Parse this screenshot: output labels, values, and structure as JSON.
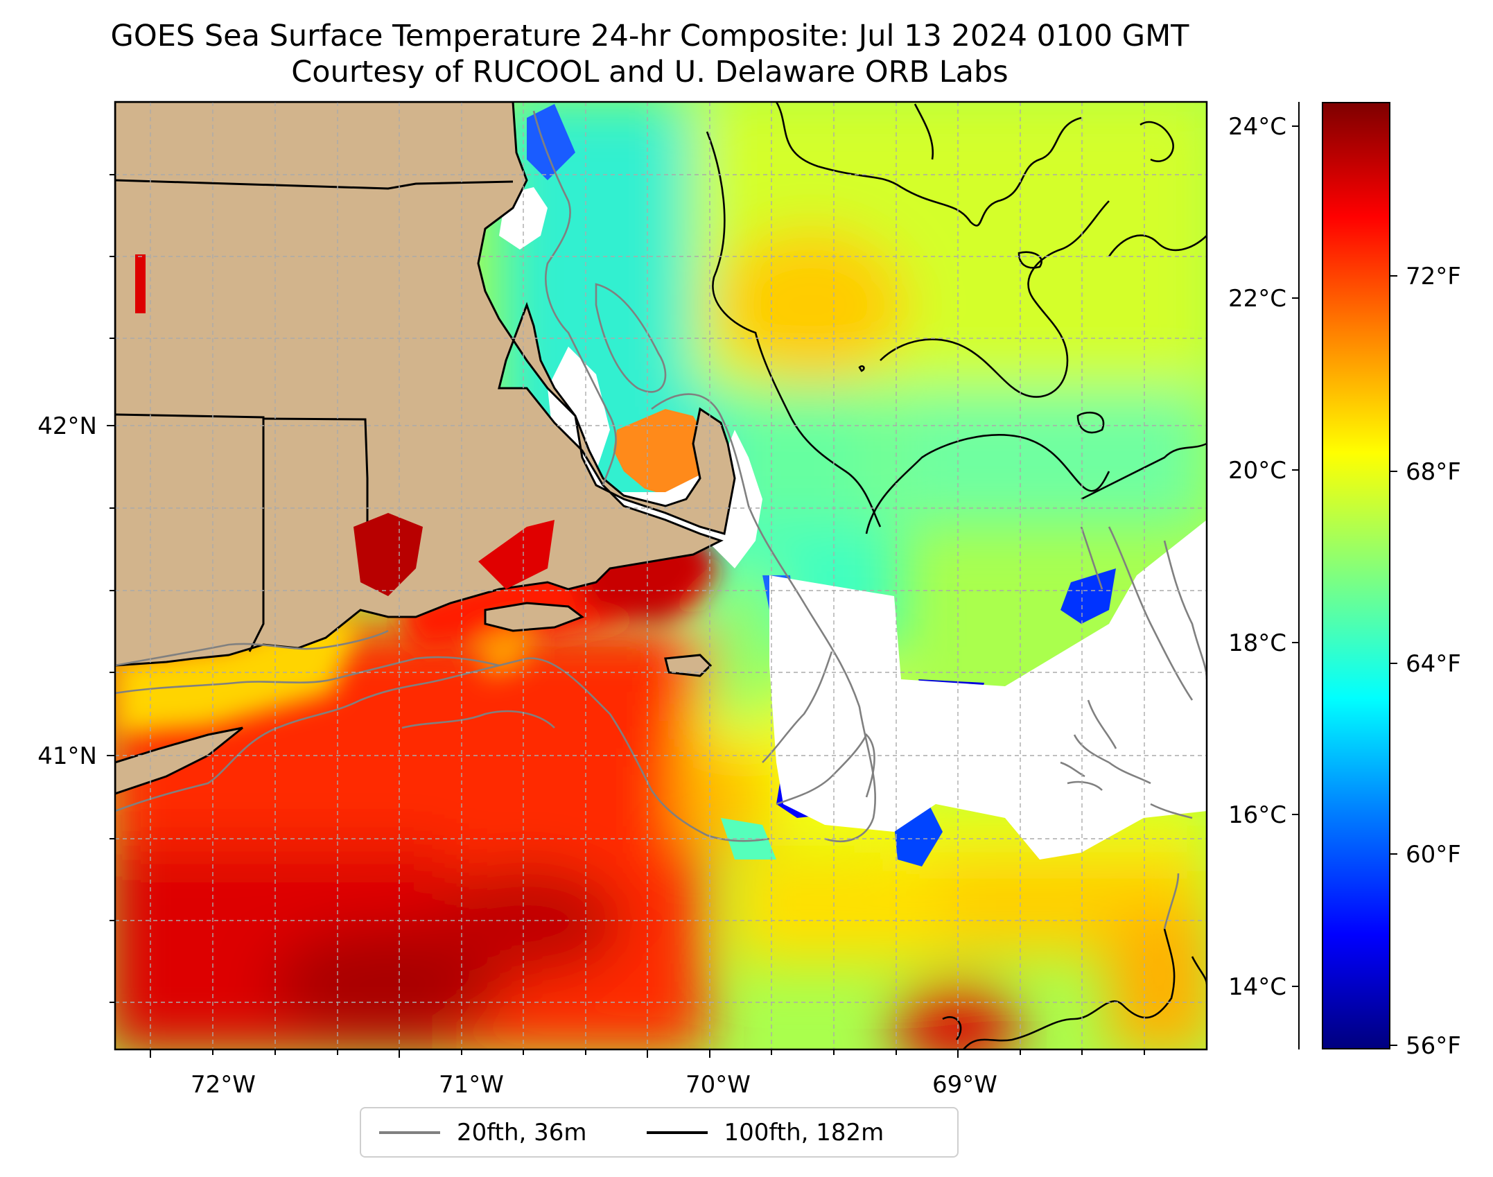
{
  "title": {
    "line1": "GOES Sea Surface Temperature 24-hr Composite: Jul 13 2024 0100 GMT",
    "line2": "Courtesy of RUCOOL and U. Delaware ORB Labs"
  },
  "map": {
    "lon_ticks": [
      "72°W",
      "71°W",
      "70°W",
      "69°W"
    ],
    "lat_ticks": [
      "42°N",
      "41°N"
    ],
    "colors": {
      "land": "#d2b48c",
      "nodata": "#ffffff",
      "coast": "#000000",
      "isobath_20fth": "#808080"
    }
  },
  "colorbar": {
    "celsius_ticks": [
      "24°C",
      "22°C",
      "20°C",
      "18°C",
      "16°C",
      "14°C"
    ],
    "fahrenheit_ticks": [
      "72°F",
      "68°F",
      "64°F",
      "60°F",
      "56°F"
    ],
    "colormap": "jet"
  },
  "legend": {
    "items": [
      {
        "label": "20fth, 36m",
        "color": "#808080"
      },
      {
        "label": "100fth, 182m",
        "color": "#000000"
      }
    ]
  }
}
